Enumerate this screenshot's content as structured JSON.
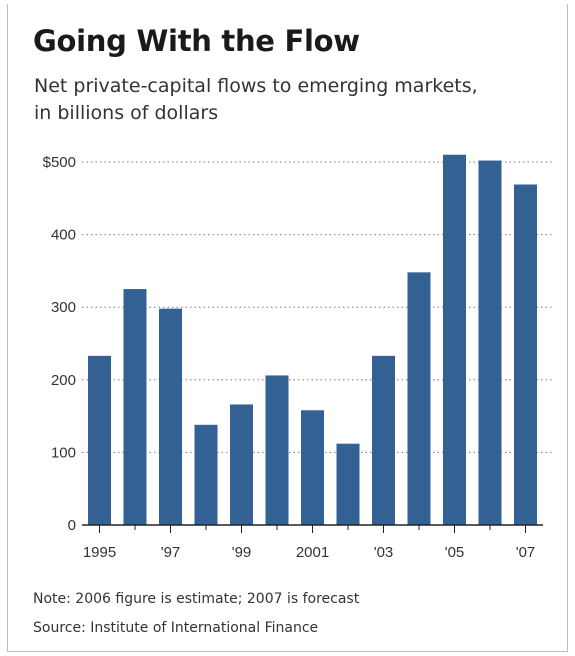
{
  "chart_data": {
    "type": "bar",
    "title": "Going With the Flow",
    "subtitle_lines": [
      "Net private-capital flows to emerging markets,",
      "in billions of dollars"
    ],
    "categories": [
      "1995",
      "1996",
      "1997",
      "1998",
      "1999",
      "2000",
      "2001",
      "2002",
      "2003",
      "2004",
      "2005",
      "2006",
      "2007"
    ],
    "x_tick_labels": [
      "1995",
      "",
      "'97",
      "",
      "'99",
      "",
      "2001",
      "",
      "'03",
      "",
      "'05",
      "",
      "'07"
    ],
    "values": [
      233,
      325,
      298,
      138,
      166,
      206,
      158,
      112,
      233,
      348,
      510,
      502,
      469
    ],
    "ylim": [
      0,
      500
    ],
    "y_ticks": [
      0,
      100,
      200,
      300,
      400,
      500
    ],
    "y_tick_labels": [
      "0",
      "100",
      "200",
      "300",
      "400",
      "$500"
    ],
    "grid": true,
    "bar_color": "#346194",
    "notes": [
      "Note: 2006 figure is estimate; 2007 is forecast",
      "Source: Institute of International Finance"
    ]
  }
}
